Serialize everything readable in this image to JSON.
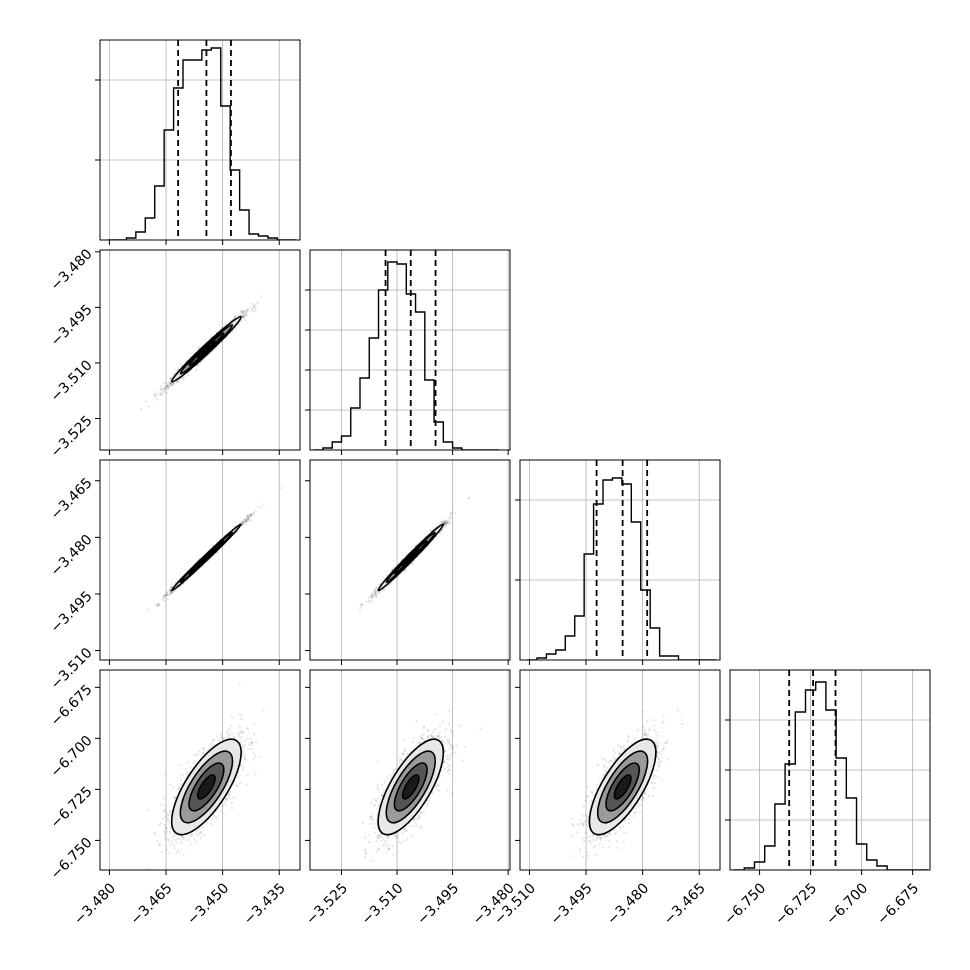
{
  "chart_data": {
    "type": "corner",
    "grid": true,
    "parameters": 4,
    "ranges": [
      [
        -3.4825,
        -3.4295
      ],
      [
        -3.5335,
        -3.4795
      ],
      [
        -3.5125,
        -3.4595
      ],
      [
        -6.7645,
        -6.6665
      ]
    ],
    "ticks": [
      {
        "values": [
          -3.48,
          -3.465,
          -3.45,
          -3.435
        ],
        "labels": [
          "−3.480",
          "−3.465",
          "−3.450",
          "−3.435"
        ]
      },
      {
        "values": [
          -3.525,
          -3.51,
          -3.495,
          -3.48
        ],
        "labels": [
          "−3.525",
          "−3.510",
          "−3.495",
          "−3.480"
        ]
      },
      {
        "values": [
          -3.51,
          -3.495,
          -3.48,
          -3.465
        ],
        "labels": [
          "−3.510",
          "−3.495",
          "−3.480",
          "−3.465"
        ]
      },
      {
        "values": [
          -6.75,
          -6.725,
          -6.7,
          -6.675
        ],
        "labels": [
          "−6.750",
          "−6.725",
          "−6.700",
          "−6.675"
        ]
      }
    ],
    "diag_yticks": [
      [
        0.4,
        0.8
      ],
      [
        0.2,
        0.4,
        0.6,
        0.8
      ],
      [
        0.4,
        0.8
      ],
      [
        0.25,
        0.5,
        0.75
      ]
    ],
    "histograms": [
      {
        "bins": [
          -3.4805,
          -3.478,
          -3.4755,
          -3.473,
          -3.4705,
          -3.468,
          -3.4655,
          -3.463,
          -3.4605,
          -3.458,
          -3.4555,
          -3.453,
          -3.4505,
          -3.448,
          -3.4455,
          -3.443,
          -3.4405,
          -3.438,
          -3.4355,
          -3.433,
          -3.4305
        ],
        "counts": [
          0.0,
          0.0,
          0.01,
          0.04,
          0.11,
          0.27,
          0.55,
          0.76,
          0.9,
          0.9,
          0.95,
          0.96,
          0.67,
          0.35,
          0.15,
          0.03,
          0.02,
          0.01,
          0.0,
          0.0
        ],
        "quantiles": [
          -3.4618,
          -3.4543,
          -3.4478
        ]
      },
      {
        "bins": [
          -3.5325,
          -3.53,
          -3.5275,
          -3.525,
          -3.5225,
          -3.52,
          -3.5175,
          -3.515,
          -3.5125,
          -3.51,
          -3.5075,
          -3.505,
          -3.5025,
          -3.5,
          -3.4975,
          -3.495,
          -3.4925,
          -3.49,
          -3.4875,
          -3.485,
          -3.4825
        ],
        "counts": [
          0.0,
          0.01,
          0.04,
          0.07,
          0.21,
          0.36,
          0.56,
          0.8,
          0.94,
          0.93,
          0.78,
          0.69,
          0.35,
          0.14,
          0.04,
          0.01,
          0.0,
          0.0,
          0.0,
          0.0
        ],
        "quantiles": [
          -3.5131,
          -3.5063,
          -3.4996
        ]
      },
      {
        "bins": [
          -3.5105,
          -3.508,
          -3.5055,
          -3.503,
          -3.5005,
          -3.498,
          -3.4955,
          -3.493,
          -3.4905,
          -3.488,
          -3.4855,
          -3.483,
          -3.4805,
          -3.478,
          -3.4755,
          -3.473,
          -3.4705,
          -3.468,
          -3.4655,
          -3.463,
          -3.4605
        ],
        "counts": [
          0.0,
          0.01,
          0.03,
          0.05,
          0.12,
          0.22,
          0.53,
          0.78,
          0.9,
          0.91,
          0.88,
          0.69,
          0.35,
          0.16,
          0.02,
          0.02,
          0.0,
          0.0,
          0.0,
          0.0
        ],
        "quantiles": [
          -3.4922,
          -3.4853,
          -3.4788
        ]
      },
      {
        "bins": [
          -6.7625,
          -6.7575,
          -6.7525,
          -6.7475,
          -6.7425,
          -6.7375,
          -6.7325,
          -6.7275,
          -6.7225,
          -6.7175,
          -6.7125,
          -6.7075,
          -6.7025,
          -6.6975,
          -6.6925,
          -6.6875,
          -6.6825,
          -6.6775,
          -6.6725,
          -6.6675
        ],
        "counts": [
          0.0,
          0.01,
          0.04,
          0.12,
          0.33,
          0.53,
          0.79,
          0.9,
          0.94,
          0.8,
          0.56,
          0.36,
          0.13,
          0.05,
          0.02,
          0.0,
          0.0,
          0.0,
          0.0
        ],
        "quantiles": [
          -6.7355,
          -6.7238,
          -6.7128
        ]
      }
    ],
    "pairs": [
      {
        "row": 1,
        "col": 0,
        "center": [
          -3.4543,
          -3.5063
        ],
        "sd": [
          0.0046,
          0.0044
        ],
        "corr": 0.985
      },
      {
        "row": 2,
        "col": 0,
        "center": [
          -3.4543,
          -3.4853
        ],
        "sd": [
          0.0046,
          0.0044
        ],
        "corr": 0.995
      },
      {
        "row": 2,
        "col": 1,
        "center": [
          -3.5063,
          -3.4853
        ],
        "sd": [
          0.0044,
          0.0044
        ],
        "corr": 0.99
      },
      {
        "row": 3,
        "col": 0,
        "center": [
          -3.4543,
          -6.7238
        ],
        "sd": [
          0.0046,
          0.0117
        ],
        "corr": 0.72
      },
      {
        "row": 3,
        "col": 1,
        "center": [
          -3.5063,
          -6.7238
        ],
        "sd": [
          0.0044,
          0.0117
        ],
        "corr": 0.72
      },
      {
        "row": 3,
        "col": 2,
        "center": [
          -3.4853,
          -6.7238
        ],
        "sd": [
          0.0044,
          0.0117
        ],
        "corr": 0.72
      }
    ],
    "contour_levels_sigma": [
      0.5,
      1.0,
      1.5,
      2.0
    ],
    "contour_fills": [
      "#1a1a1a",
      "#555555",
      "#9a9a9a",
      "#e8e8e8"
    ],
    "colors": {
      "hist": "#000000",
      "points": "#333333",
      "grid": "#b0b0b0"
    }
  }
}
